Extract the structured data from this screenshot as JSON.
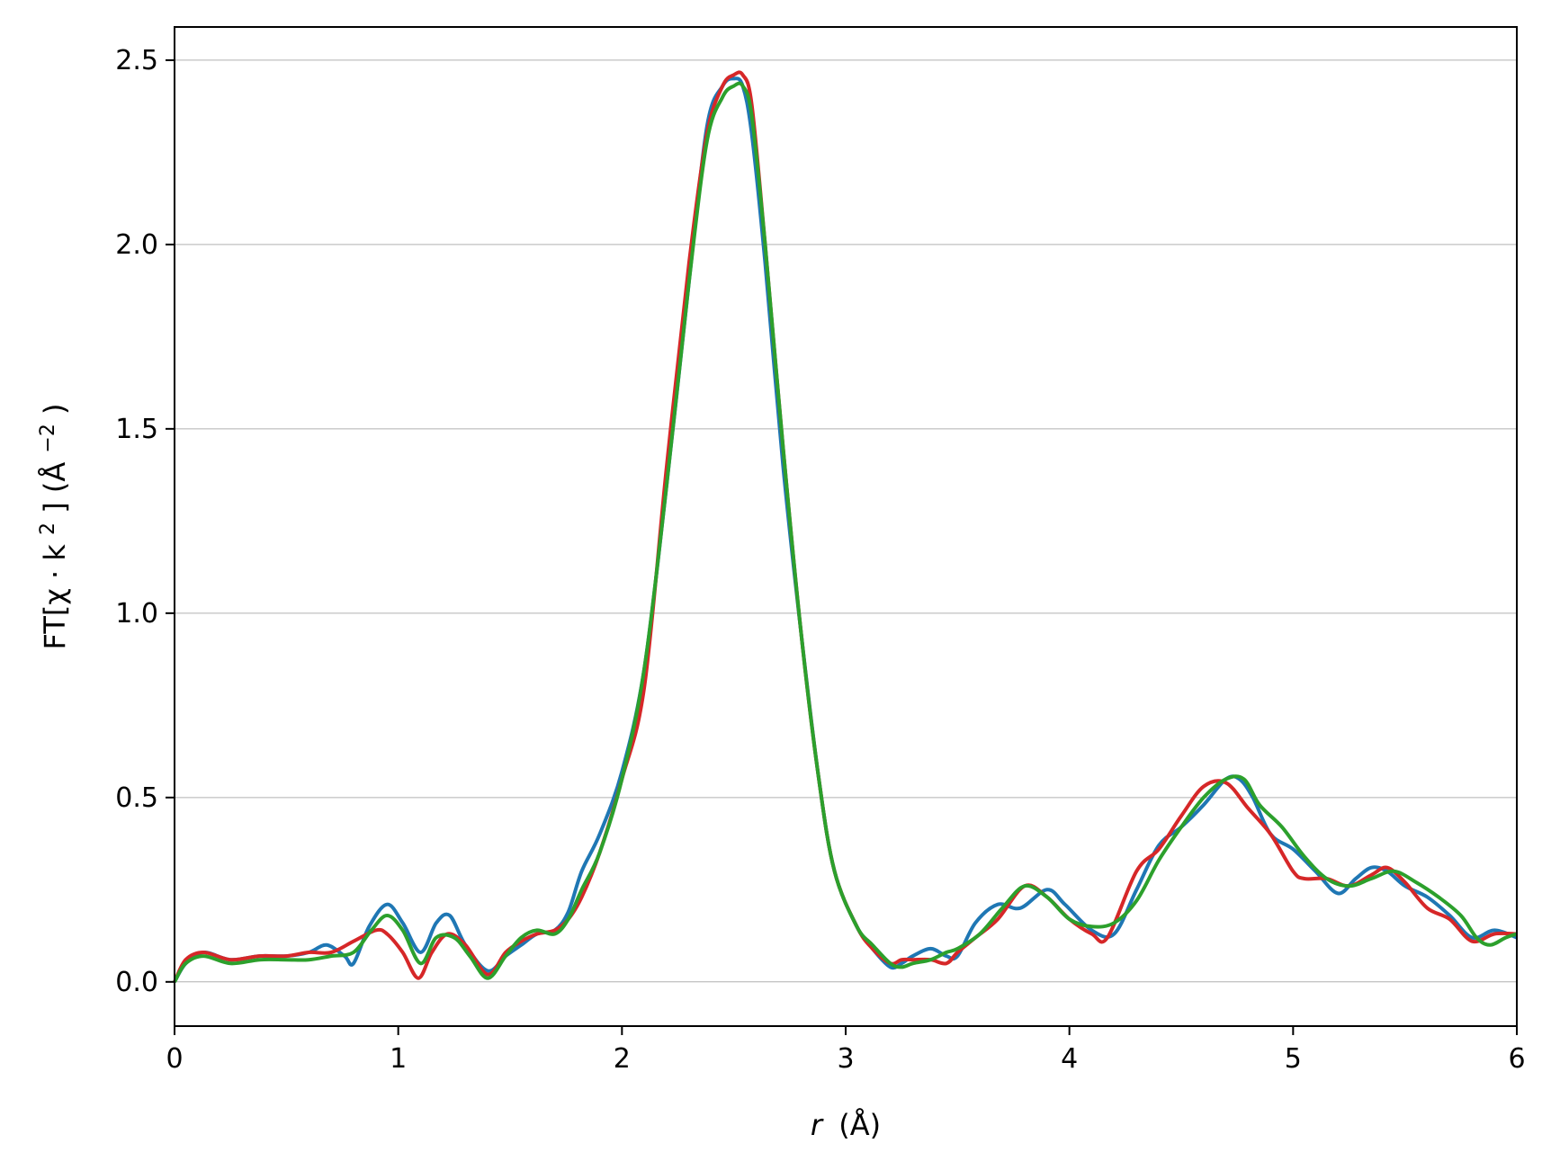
{
  "chart_data": {
    "type": "line",
    "xlabel_var": "r",
    "xlabel_unit": "(Å)",
    "ylabel_main": "FT[χ · k",
    "ylabel_sup": "2",
    "ylabel_close": "] (Å",
    "ylabel_unit_sup": "−2",
    "ylabel_end": ")",
    "xlim": [
      0,
      6
    ],
    "ylim": [
      -0.12,
      2.59
    ],
    "xticks": [
      0,
      1,
      2,
      3,
      4,
      5,
      6
    ],
    "xtick_labels": [
      "0",
      "1",
      "2",
      "3",
      "4",
      "5",
      "6"
    ],
    "yticks": [
      0.0,
      0.5,
      1.0,
      1.5,
      2.0,
      2.5
    ],
    "ytick_labels": [
      "0.0",
      "0.5",
      "1.0",
      "1.5",
      "2.0",
      "2.5"
    ],
    "grid": "horizontal",
    "legend": "none",
    "series": [
      {
        "color": "#1f77b4",
        "x": [
          0,
          0.05,
          0.13,
          0.25,
          0.38,
          0.5,
          0.6,
          0.68,
          0.76,
          0.8,
          0.87,
          0.95,
          1.02,
          1.1,
          1.17,
          1.23,
          1.3,
          1.4,
          1.48,
          1.55,
          1.62,
          1.7,
          1.76,
          1.82,
          1.9,
          2.0,
          2.1,
          2.2,
          2.3,
          2.38,
          2.45,
          2.5,
          2.54,
          2.58,
          2.64,
          2.72,
          2.8,
          2.88,
          2.95,
          3.05,
          3.12,
          3.2,
          3.25,
          3.3,
          3.38,
          3.45,
          3.5,
          3.58,
          3.68,
          3.78,
          3.9,
          3.98,
          4.1,
          4.2,
          4.3,
          4.4,
          4.5,
          4.6,
          4.7,
          4.76,
          4.82,
          4.9,
          5.0,
          5.1,
          5.2,
          5.28,
          5.35,
          5.42,
          5.5,
          5.6,
          5.7,
          5.8,
          5.9,
          6.0
        ],
        "y": [
          0,
          0.05,
          0.08,
          0.06,
          0.07,
          0.07,
          0.08,
          0.1,
          0.07,
          0.05,
          0.15,
          0.21,
          0.16,
          0.08,
          0.16,
          0.18,
          0.1,
          0.03,
          0.07,
          0.1,
          0.13,
          0.14,
          0.19,
          0.3,
          0.4,
          0.57,
          0.85,
          1.35,
          1.9,
          2.32,
          2.43,
          2.45,
          2.43,
          2.3,
          1.95,
          1.4,
          0.95,
          0.55,
          0.3,
          0.15,
          0.09,
          0.04,
          0.05,
          0.07,
          0.09,
          0.07,
          0.07,
          0.16,
          0.21,
          0.2,
          0.25,
          0.21,
          0.14,
          0.13,
          0.25,
          0.37,
          0.42,
          0.48,
          0.55,
          0.55,
          0.5,
          0.4,
          0.36,
          0.3,
          0.24,
          0.28,
          0.31,
          0.3,
          0.26,
          0.23,
          0.18,
          0.12,
          0.14,
          0.12
        ]
      },
      {
        "color": "#d62728",
        "x": [
          0,
          0.05,
          0.13,
          0.25,
          0.38,
          0.5,
          0.6,
          0.7,
          0.8,
          0.9,
          0.95,
          1.02,
          1.09,
          1.15,
          1.22,
          1.3,
          1.4,
          1.48,
          1.55,
          1.62,
          1.7,
          1.76,
          1.82,
          1.9,
          2.0,
          2.1,
          2.2,
          2.3,
          2.38,
          2.45,
          2.5,
          2.54,
          2.58,
          2.64,
          2.72,
          2.8,
          2.88,
          2.95,
          3.05,
          3.12,
          3.2,
          3.25,
          3.3,
          3.38,
          3.45,
          3.5,
          3.58,
          3.68,
          3.8,
          3.9,
          4.0,
          4.1,
          4.17,
          4.3,
          4.4,
          4.5,
          4.6,
          4.7,
          4.8,
          4.9,
          5.0,
          5.05,
          5.15,
          5.25,
          5.35,
          5.42,
          5.5,
          5.6,
          5.7,
          5.8,
          5.9,
          6.0
        ],
        "y": [
          0,
          0.06,
          0.08,
          0.06,
          0.07,
          0.07,
          0.08,
          0.08,
          0.11,
          0.14,
          0.13,
          0.08,
          0.01,
          0.08,
          0.13,
          0.1,
          0.02,
          0.08,
          0.11,
          0.13,
          0.14,
          0.17,
          0.23,
          0.35,
          0.55,
          0.8,
          1.4,
          1.95,
          2.3,
          2.43,
          2.46,
          2.46,
          2.38,
          2.0,
          1.45,
          0.95,
          0.55,
          0.3,
          0.15,
          0.09,
          0.05,
          0.06,
          0.06,
          0.06,
          0.05,
          0.08,
          0.12,
          0.17,
          0.26,
          0.23,
          0.17,
          0.13,
          0.12,
          0.3,
          0.36,
          0.45,
          0.53,
          0.54,
          0.47,
          0.4,
          0.3,
          0.28,
          0.28,
          0.26,
          0.29,
          0.31,
          0.27,
          0.2,
          0.17,
          0.11,
          0.13,
          0.13
        ]
      },
      {
        "color": "#2ca02c",
        "x": [
          0,
          0.05,
          0.13,
          0.25,
          0.38,
          0.5,
          0.6,
          0.7,
          0.8,
          0.88,
          0.95,
          1.02,
          1.1,
          1.17,
          1.25,
          1.32,
          1.4,
          1.48,
          1.55,
          1.62,
          1.7,
          1.76,
          1.82,
          1.9,
          2.0,
          2.1,
          2.2,
          2.3,
          2.38,
          2.45,
          2.5,
          2.54,
          2.58,
          2.64,
          2.72,
          2.8,
          2.88,
          2.95,
          3.05,
          3.12,
          3.2,
          3.25,
          3.3,
          3.38,
          3.45,
          3.5,
          3.6,
          3.7,
          3.8,
          3.9,
          4.0,
          4.1,
          4.2,
          4.3,
          4.4,
          4.5,
          4.6,
          4.7,
          4.78,
          4.85,
          4.95,
          5.05,
          5.15,
          5.25,
          5.35,
          5.45,
          5.55,
          5.65,
          5.75,
          5.82,
          5.88,
          5.95,
          6.0
        ],
        "y": [
          0,
          0.05,
          0.07,
          0.05,
          0.06,
          0.06,
          0.06,
          0.07,
          0.08,
          0.14,
          0.18,
          0.14,
          0.05,
          0.12,
          0.12,
          0.07,
          0.01,
          0.07,
          0.12,
          0.14,
          0.13,
          0.17,
          0.25,
          0.35,
          0.55,
          0.85,
          1.35,
          1.9,
          2.28,
          2.4,
          2.43,
          2.43,
          2.35,
          2.0,
          1.45,
          0.95,
          0.55,
          0.3,
          0.15,
          0.1,
          0.05,
          0.04,
          0.05,
          0.06,
          0.08,
          0.09,
          0.13,
          0.2,
          0.26,
          0.23,
          0.17,
          0.15,
          0.16,
          0.22,
          0.33,
          0.42,
          0.5,
          0.55,
          0.55,
          0.48,
          0.42,
          0.34,
          0.28,
          0.26,
          0.28,
          0.3,
          0.27,
          0.23,
          0.18,
          0.12,
          0.1,
          0.12,
          0.13
        ]
      }
    ]
  }
}
